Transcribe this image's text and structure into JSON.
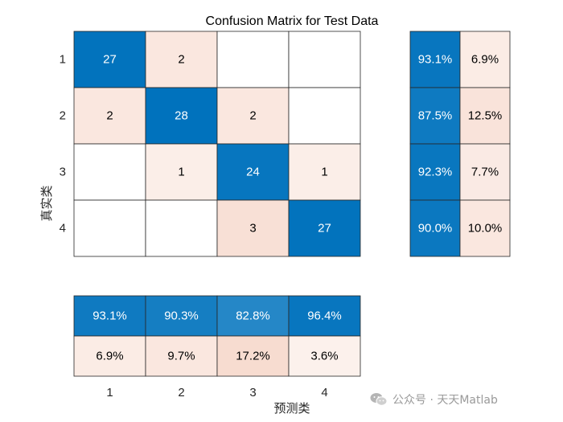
{
  "chart_data": {
    "type": "heatmap",
    "title": "Confusion Matrix for Test Data",
    "xlabel": "预测类",
    "ylabel": "真实类",
    "classes": [
      "1",
      "2",
      "3",
      "4"
    ],
    "matrix": [
      [
        27,
        2,
        0,
        0
      ],
      [
        2,
        28,
        2,
        0
      ],
      [
        0,
        1,
        24,
        1
      ],
      [
        0,
        0,
        3,
        27
      ]
    ],
    "row_summary": [
      [
        "93.1%",
        "6.9%"
      ],
      [
        "87.5%",
        "12.5%"
      ],
      [
        "92.3%",
        "7.7%"
      ],
      [
        "90.0%",
        "10.0%"
      ]
    ],
    "row_summary_values": [
      [
        0.931,
        0.069
      ],
      [
        0.875,
        0.125
      ],
      [
        0.923,
        0.077
      ],
      [
        0.9,
        0.1
      ]
    ],
    "column_summary": [
      [
        "93.1%",
        "90.3%",
        "82.8%",
        "96.4%"
      ],
      [
        "6.9%",
        "9.7%",
        "17.2%",
        "3.6%"
      ]
    ],
    "column_summary_values": [
      [
        0.931,
        0.903,
        0.828,
        0.964
      ],
      [
        0.069,
        0.097,
        0.172,
        0.036
      ]
    ],
    "colors": {
      "correct": "#0072bd",
      "incorrect": "#d95319",
      "empty": "#ffffff",
      "grid": "#262626",
      "light_text": "#ffffff",
      "dark_text": "#000000"
    }
  },
  "watermark": {
    "text": "公众号 · 天天Matlab",
    "icon": "wechat-icon"
  }
}
